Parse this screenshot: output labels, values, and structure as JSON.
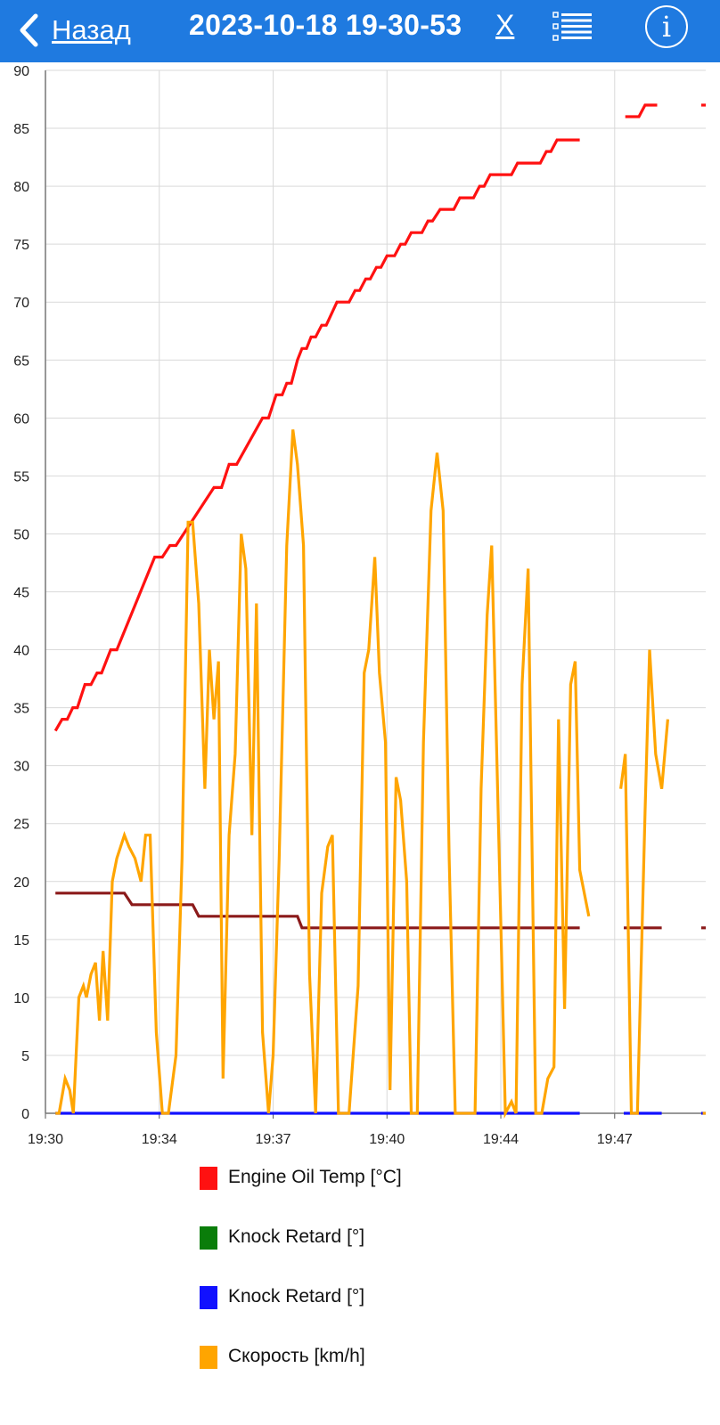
{
  "header": {
    "back_label": "Назад",
    "title": "2023-10-18 19-30-53",
    "close_label": "X",
    "info_label": "i"
  },
  "icons": {
    "back": "chevron-left-icon",
    "list": "list-icon",
    "info": "info-icon"
  },
  "colors": {
    "header_bg": "#1f7ae0",
    "oil_temp": "#ff1111",
    "knock_green": "#0a7d0a",
    "knock_blue": "#1111ff",
    "speed": "#ffa500",
    "dark_red": "#8b1a1a"
  },
  "chart_data": {
    "type": "line",
    "x_ticks": [
      "19:30",
      "19:34",
      "19:37",
      "19:40",
      "19:44",
      "19:47"
    ],
    "x_tick_minutes": [
      0,
      3.75,
      7.5,
      11.25,
      15,
      18.75
    ],
    "xlim": [
      0,
      21.75
    ],
    "ylim": [
      0,
      90
    ],
    "y_ticks": [
      0,
      5,
      10,
      15,
      20,
      25,
      30,
      35,
      40,
      45,
      50,
      55,
      60,
      65,
      70,
      75,
      80,
      85,
      90
    ],
    "grid": true,
    "legend_position": "bottom",
    "series": [
      {
        "name": "Engine Oil Temp [°C]",
        "color": "#ff1111",
        "segments": [
          [
            [
              0.33,
              33
            ],
            [
              0.55,
              34
            ],
            [
              0.72,
              34
            ],
            [
              0.9,
              35
            ],
            [
              1.05,
              35
            ],
            [
              1.3,
              37
            ],
            [
              1.5,
              37
            ],
            [
              1.7,
              38
            ],
            [
              1.85,
              38
            ],
            [
              2.15,
              40
            ],
            [
              2.35,
              40
            ],
            [
              3.6,
              48
            ],
            [
              3.85,
              48
            ],
            [
              4.1,
              49
            ],
            [
              4.3,
              49
            ],
            [
              5.55,
              54
            ],
            [
              5.8,
              54
            ],
            [
              6.05,
              56
            ],
            [
              6.3,
              56
            ],
            [
              7.15,
              60
            ],
            [
              7.35,
              60
            ],
            [
              7.6,
              62
            ],
            [
              7.8,
              62
            ],
            [
              7.95,
              63
            ],
            [
              8.1,
              63
            ],
            [
              8.3,
              65
            ],
            [
              8.45,
              66
            ],
            [
              8.6,
              66
            ],
            [
              8.75,
              67
            ],
            [
              8.9,
              67
            ],
            [
              9.1,
              68
            ],
            [
              9.25,
              68
            ],
            [
              9.6,
              70
            ],
            [
              10.0,
              70
            ],
            [
              10.2,
              71
            ],
            [
              10.35,
              71
            ],
            [
              10.55,
              72
            ],
            [
              10.7,
              72
            ],
            [
              10.9,
              73
            ],
            [
              11.05,
              73
            ],
            [
              11.25,
              74
            ],
            [
              11.5,
              74
            ],
            [
              11.7,
              75
            ],
            [
              11.85,
              75
            ],
            [
              12.05,
              76
            ],
            [
              12.4,
              76
            ],
            [
              12.6,
              77
            ],
            [
              12.75,
              77
            ],
            [
              13.0,
              78
            ],
            [
              13.45,
              78
            ],
            [
              13.65,
              79
            ],
            [
              14.1,
              79
            ],
            [
              14.3,
              80
            ],
            [
              14.45,
              80
            ],
            [
              14.65,
              81
            ],
            [
              15.35,
              81
            ],
            [
              15.55,
              82
            ],
            [
              16.3,
              82
            ],
            [
              16.5,
              83
            ],
            [
              16.65,
              83
            ],
            [
              16.85,
              84
            ],
            [
              17.6,
              84
            ]
          ],
          [
            [
              19.1,
              86
            ],
            [
              19.55,
              86
            ],
            [
              19.75,
              87
            ],
            [
              20.15,
              87
            ]
          ],
          [
            [
              21.6,
              87
            ],
            [
              21.75,
              87
            ]
          ]
        ]
      },
      {
        "name": "Knock Retard [°]",
        "color": "#8b1a1a",
        "segments": [
          [
            [
              0.33,
              19
            ],
            [
              2.6,
              19
            ],
            [
              2.85,
              18
            ],
            [
              4.85,
              18
            ],
            [
              5.05,
              17
            ],
            [
              8.3,
              17
            ],
            [
              8.45,
              16
            ],
            [
              17.6,
              16
            ]
          ],
          [
            [
              19.05,
              16
            ],
            [
              20.3,
              16
            ]
          ],
          [
            [
              21.6,
              16
            ],
            [
              21.75,
              16
            ]
          ]
        ]
      },
      {
        "name": "Knock Retard [°]",
        "color": "#1111ff",
        "segments": [
          [
            [
              0.33,
              0
            ],
            [
              17.6,
              0
            ]
          ],
          [
            [
              19.05,
              0
            ],
            [
              20.3,
              0
            ]
          ],
          [
            [
              21.6,
              0
            ],
            [
              21.75,
              0
            ]
          ]
        ]
      },
      {
        "name": "Скорость [km/h]",
        "color": "#ffa500",
        "segments": [
          [
            [
              0.33,
              0
            ],
            [
              0.45,
              0
            ],
            [
              0.65,
              3
            ],
            [
              0.8,
              2
            ],
            [
              0.92,
              0
            ],
            [
              1.1,
              10
            ],
            [
              1.25,
              11
            ],
            [
              1.35,
              10
            ],
            [
              1.5,
              12
            ],
            [
              1.65,
              13
            ],
            [
              1.78,
              8
            ],
            [
              1.9,
              14
            ],
            [
              2.05,
              8
            ],
            [
              2.2,
              20
            ],
            [
              2.35,
              22
            ],
            [
              2.6,
              24
            ],
            [
              2.75,
              23
            ],
            [
              2.95,
              22
            ],
            [
              3.15,
              20
            ],
            [
              3.3,
              24
            ],
            [
              3.45,
              24
            ],
            [
              3.65,
              7
            ],
            [
              3.85,
              0
            ],
            [
              4.05,
              0
            ],
            [
              4.3,
              5
            ],
            [
              4.5,
              22
            ],
            [
              4.7,
              51
            ],
            [
              4.85,
              51
            ],
            [
              5.05,
              44
            ],
            [
              5.25,
              28
            ],
            [
              5.4,
              40
            ],
            [
              5.55,
              34
            ],
            [
              5.7,
              39
            ],
            [
              5.85,
              3
            ],
            [
              6.05,
              24
            ],
            [
              6.25,
              31
            ],
            [
              6.45,
              50
            ],
            [
              6.6,
              47
            ],
            [
              6.8,
              24
            ],
            [
              6.95,
              44
            ],
            [
              7.15,
              7
            ],
            [
              7.35,
              0
            ],
            [
              7.5,
              5
            ],
            [
              7.7,
              22
            ],
            [
              7.95,
              49
            ],
            [
              8.15,
              59
            ],
            [
              8.3,
              56
            ],
            [
              8.5,
              49
            ],
            [
              8.7,
              12
            ],
            [
              8.9,
              0
            ],
            [
              9.1,
              19
            ],
            [
              9.3,
              23
            ],
            [
              9.45,
              24
            ],
            [
              9.65,
              0
            ],
            [
              10.0,
              0
            ],
            [
              10.3,
              11
            ],
            [
              10.5,
              38
            ],
            [
              10.65,
              40
            ],
            [
              10.85,
              48
            ],
            [
              11.0,
              38
            ],
            [
              11.2,
              32
            ],
            [
              11.35,
              2
            ],
            [
              11.55,
              29
            ],
            [
              11.7,
              27
            ],
            [
              11.9,
              20
            ],
            [
              12.05,
              0
            ],
            [
              12.25,
              0
            ],
            [
              12.45,
              32
            ],
            [
              12.7,
              52
            ],
            [
              12.9,
              57
            ],
            [
              13.1,
              52
            ],
            [
              13.3,
              22
            ],
            [
              13.5,
              0
            ],
            [
              14.15,
              0
            ],
            [
              14.35,
              28
            ],
            [
              14.55,
              43
            ],
            [
              14.7,
              49
            ],
            [
              14.95,
              22
            ],
            [
              15.15,
              0
            ],
            [
              15.35,
              1
            ],
            [
              15.5,
              0
            ],
            [
              15.7,
              37
            ],
            [
              15.9,
              47
            ],
            [
              16.15,
              0
            ],
            [
              16.35,
              0
            ],
            [
              16.55,
              3
            ],
            [
              16.75,
              4
            ],
            [
              16.9,
              34
            ],
            [
              17.1,
              9
            ],
            [
              17.3,
              37
            ],
            [
              17.45,
              39
            ],
            [
              17.6,
              21
            ],
            [
              17.9,
              17
            ]
          ],
          [
            [
              18.95,
              28
            ],
            [
              19.1,
              31
            ],
            [
              19.3,
              0
            ],
            [
              19.5,
              0
            ],
            [
              19.75,
              26
            ],
            [
              19.9,
              40
            ],
            [
              20.1,
              31
            ],
            [
              20.3,
              28
            ],
            [
              20.5,
              34
            ]
          ],
          [
            [
              21.65,
              0
            ],
            [
              21.75,
              0
            ]
          ]
        ]
      }
    ]
  },
  "legend": [
    {
      "label": "Engine Oil Temp [°C]",
      "color": "#ff1111"
    },
    {
      "label": "Knock Retard [°]",
      "color": "#0a7d0a"
    },
    {
      "label": "Knock Retard [°]",
      "color": "#1111ff"
    },
    {
      "label": "Скорость [km/h]",
      "color": "#ffa500"
    }
  ]
}
